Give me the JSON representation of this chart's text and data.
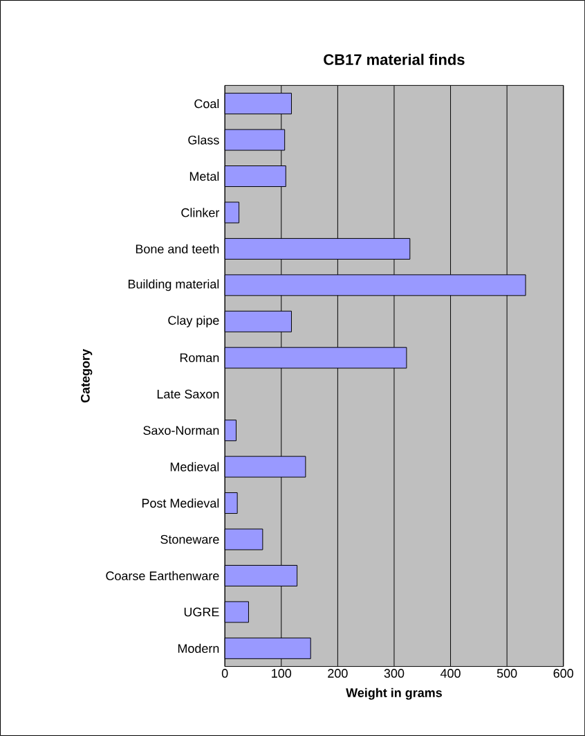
{
  "chart_data": {
    "type": "bar",
    "orientation": "horizontal",
    "title": "CB17 material finds",
    "xlabel": "Weight in grams",
    "ylabel": "Category",
    "categories": [
      "Coal",
      "Glass",
      "Metal",
      "Clinker",
      "Bone and teeth",
      "Building material",
      "Clay pipe",
      "Roman",
      "Late Saxon",
      "Saxo-Norman",
      "Medieval",
      "Post Medieval",
      "Stoneware",
      "Coarse Earthenware",
      "UGRE",
      "Modern"
    ],
    "values": [
      118,
      106,
      108,
      25,
      328,
      533,
      118,
      322,
      null,
      20,
      143,
      22,
      67,
      128,
      42,
      152
    ],
    "color": "#9999ff",
    "xlim": [
      0,
      600
    ],
    "xticks": [
      0,
      100,
      200,
      300,
      400,
      500,
      600
    ],
    "grid": "x"
  }
}
